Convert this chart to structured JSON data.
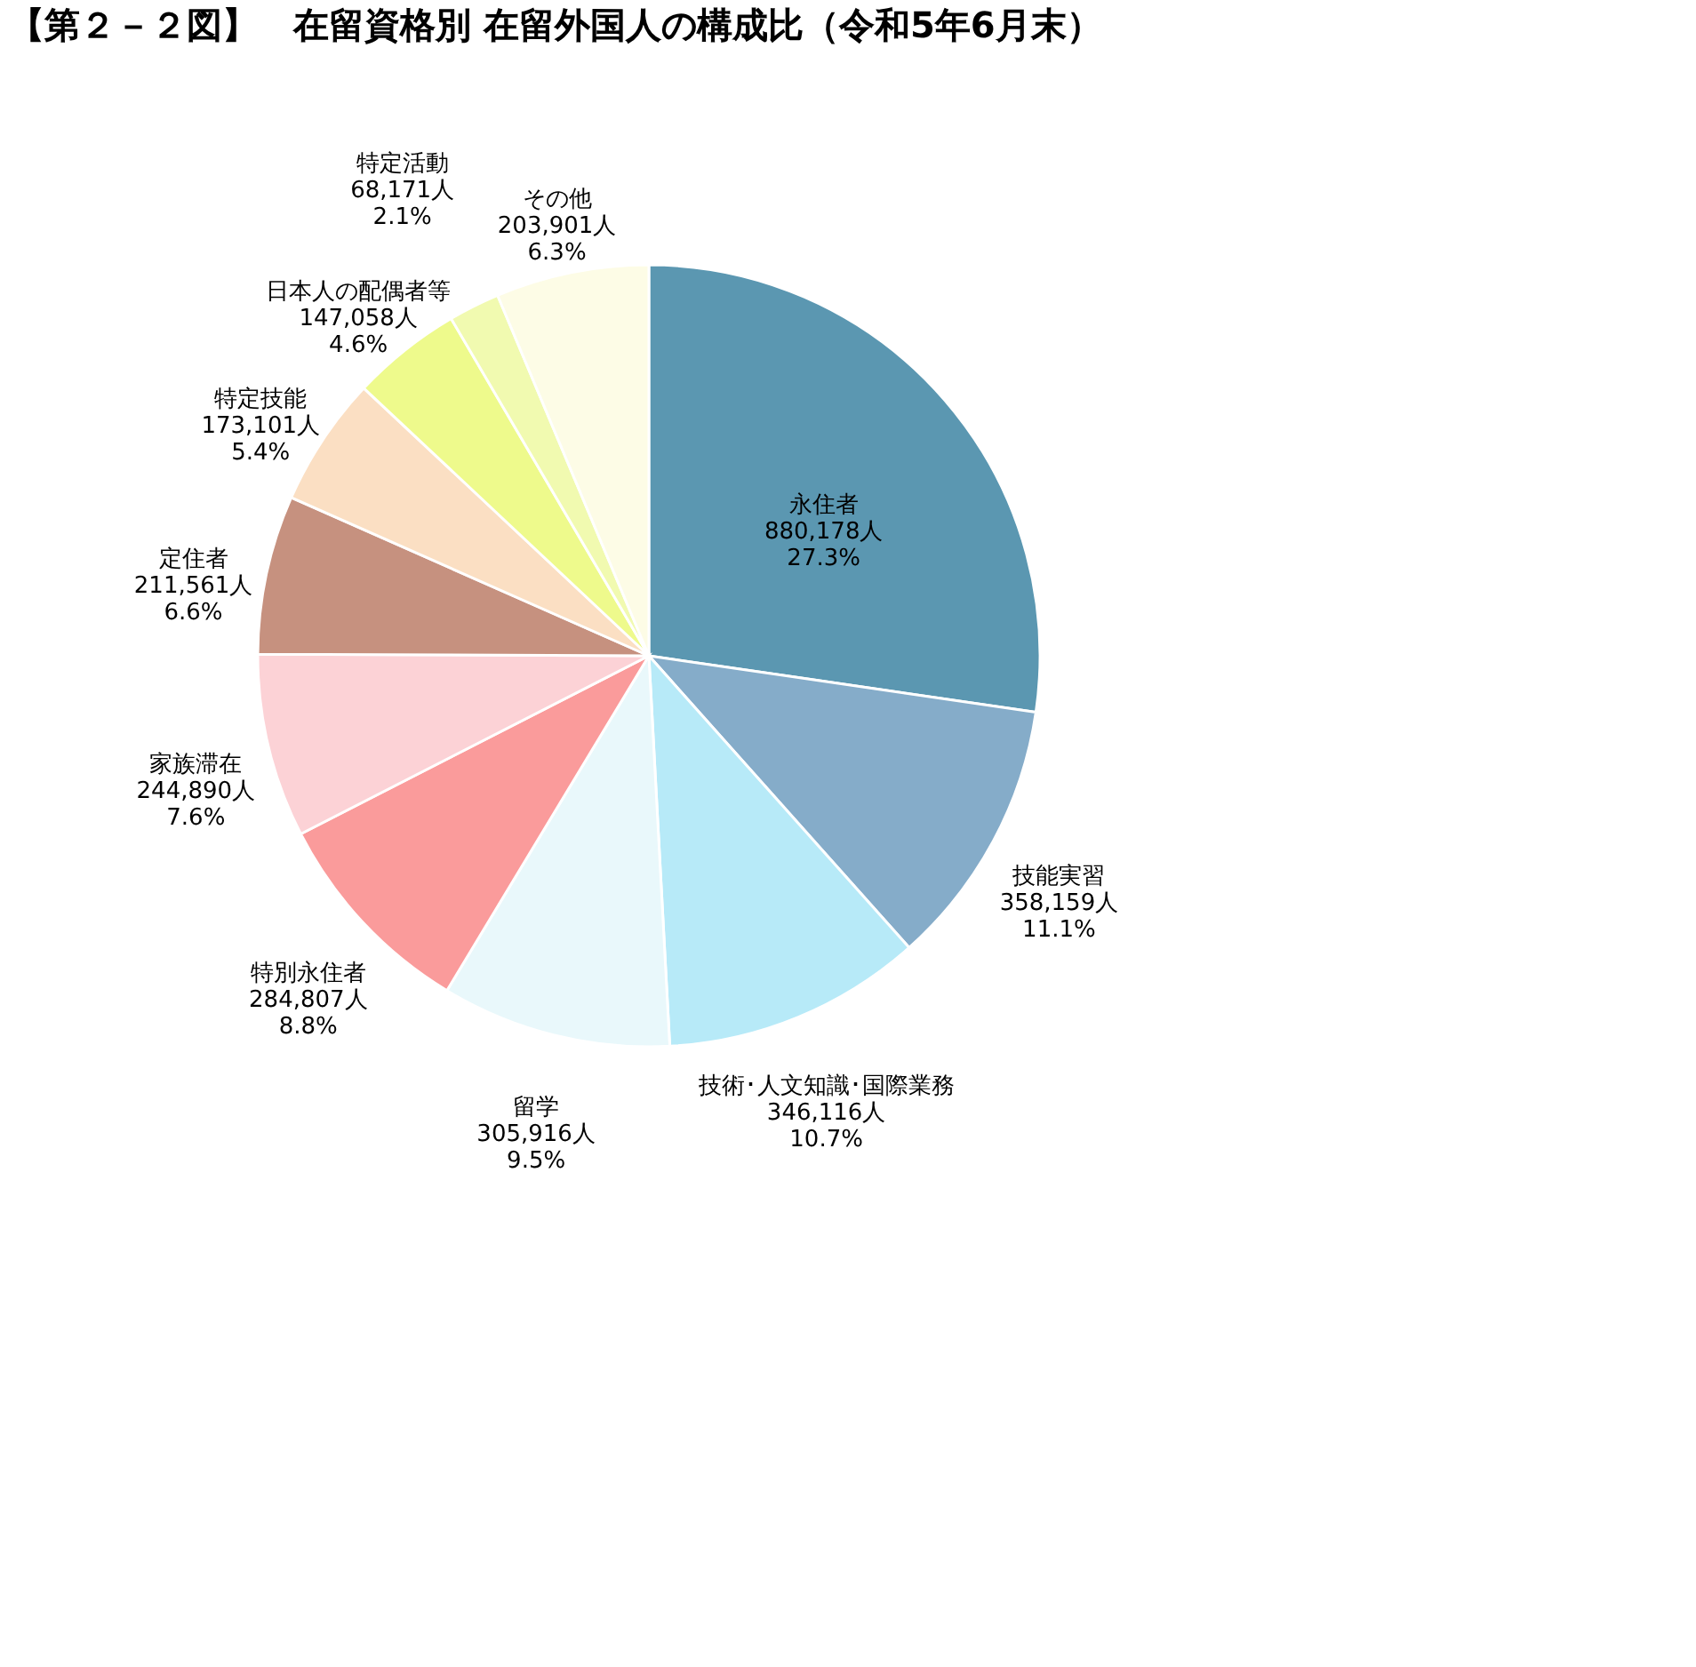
{
  "chart_data": {
    "type": "pie",
    "title": "【第２－２図】　在留資格別  在留外国人の構成比（令和5年6月末）",
    "categories": [
      "永住者",
      "技能実習",
      "技術･人文知識･国際業務",
      "留学",
      "特別永住者",
      "家族滞在",
      "定住者",
      "特定技能",
      "日本人の配偶者等",
      "特定活動",
      "その他"
    ],
    "values": [
      880178,
      358159,
      346116,
      305916,
      284807,
      244890,
      211561,
      173101,
      147058,
      68171,
      203901
    ],
    "value_labels": [
      "880,178人\n27.3%",
      "358,159人\n11.1%",
      "346,116人\n10.7%",
      "305,916人\n9.5%",
      "284,807人\n8.8%",
      "244,890人\n7.6%",
      "211,561人\n6.6%",
      "173,101人\n5.4%",
      "147,058人\n4.6%",
      "68,171人\n2.1%",
      "203,901人\n6.3%"
    ],
    "colors": [
      "#5b97b1",
      "#85acc9",
      "#b7eaf8",
      "#e9f8fb",
      "#fa9b9b",
      "#fcd2d6",
      "#c6917f",
      "#fbdfc3",
      "#eefa8c",
      "#f1fab0",
      "#fdfce6"
    ],
    "legend": false
  }
}
